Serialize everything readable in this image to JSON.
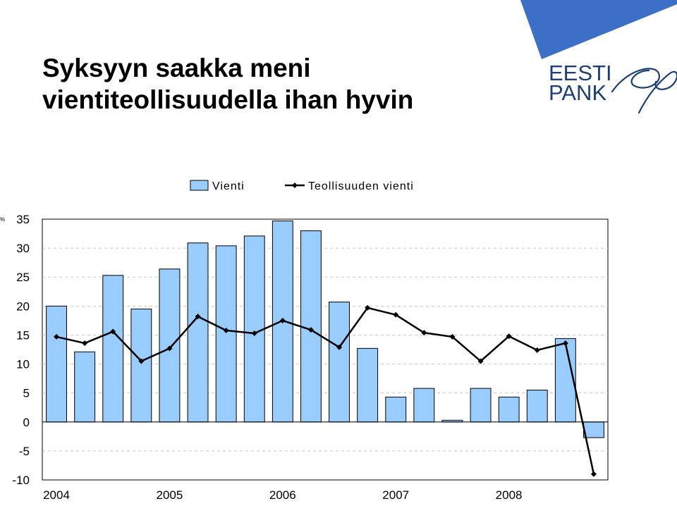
{
  "title": {
    "line1": "Syksyyn saakka meni",
    "line2": "vientiteollisuudella ihan hyvin"
  },
  "logo": {
    "line1": "EESTI",
    "line2": "PANK",
    "accent_color": "#3c6fc6",
    "text_color": "#1f3f73"
  },
  "chart_data": {
    "type": "bar",
    "unit": "%",
    "ylim": [
      -10,
      35
    ],
    "yticks": [
      35,
      30,
      25,
      20,
      15,
      10,
      5,
      0,
      -5,
      -10
    ],
    "year_labels": [
      "2004",
      "2005",
      "2006",
      "2007",
      "2008"
    ],
    "legend_position": "top",
    "grid": true,
    "series": [
      {
        "name": "Vienti",
        "type": "bar",
        "color": "#99ccff",
        "values": [
          20.0,
          12.1,
          25.3,
          19.5,
          26.4,
          30.9,
          30.4,
          32.1,
          34.7,
          33.0,
          20.7,
          12.7,
          4.3,
          5.8,
          0.3,
          5.8,
          4.3,
          5.5,
          14.4,
          -2.7
        ]
      },
      {
        "name": "Teollisuuden vienti",
        "type": "line",
        "color": "#000000",
        "values": [
          14.7,
          13.6,
          15.6,
          10.5,
          12.7,
          18.2,
          15.8,
          15.3,
          17.5,
          15.9,
          12.9,
          19.7,
          18.5,
          15.4,
          14.7,
          10.5,
          14.8,
          12.4,
          13.6,
          -9.0
        ]
      }
    ]
  }
}
